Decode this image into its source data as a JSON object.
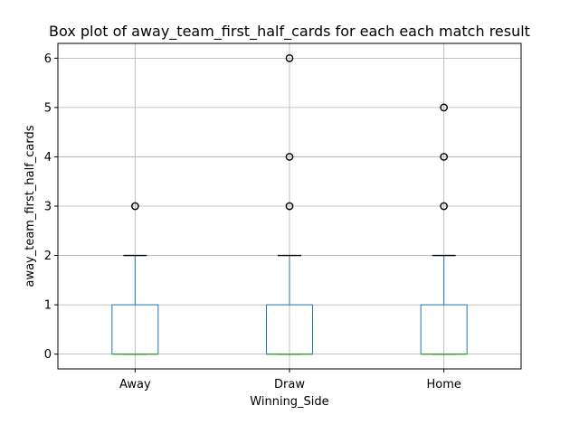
{
  "chart_data": {
    "type": "box",
    "title": "Box plot of away_team_first_half_cards for each each match result",
    "xlabel": "Winning_Side",
    "ylabel": "away_team_first_half_cards",
    "ylim": [
      -0.3,
      6.3
    ],
    "yticks": [
      "0",
      "1",
      "2",
      "3",
      "4",
      "5",
      "6"
    ],
    "grid": true,
    "categories": [
      "Away",
      "Draw",
      "Home"
    ],
    "boxes": [
      {
        "q1": 0,
        "median": 0,
        "q3": 1,
        "whisker_low": 0,
        "whisker_high": 2,
        "outliers": [
          3
        ]
      },
      {
        "q1": 0,
        "median": 0,
        "q3": 1,
        "whisker_low": 0,
        "whisker_high": 2,
        "outliers": [
          3,
          4,
          6
        ]
      },
      {
        "q1": 0,
        "median": 0,
        "q3": 1,
        "whisker_low": 0,
        "whisker_high": 2,
        "outliers": [
          3,
          4,
          5
        ]
      }
    ],
    "colors": {
      "box": "#1f77b4",
      "median": "#2ca02c",
      "whisker_cap": "#000000",
      "grid": "#b0b0b0",
      "outlier": "#000000"
    }
  }
}
